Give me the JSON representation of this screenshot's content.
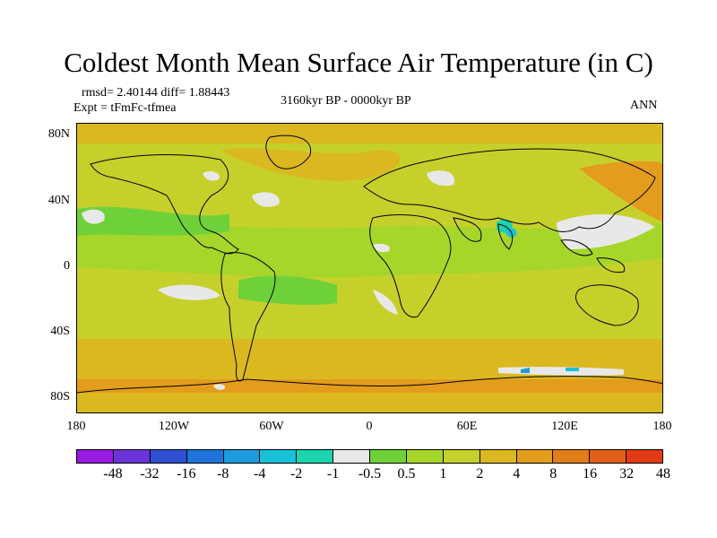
{
  "title": "Coldest Month Mean Surface Air Temperature (in C)",
  "stats": "rmsd= 2.40144 diff= 1.88443",
  "expt": "Expt = tFmFc-tfmea",
  "period": "3160kyr BP - 0000kyr BP",
  "season": "ANN",
  "y_ticks": [
    "80N",
    "40N",
    "0",
    "40S",
    "80S"
  ],
  "x_ticks": [
    "180",
    "120W",
    "60W",
    "0",
    "60E",
    "120E",
    "180"
  ],
  "colorbar": {
    "colors": [
      "#9a1be2",
      "#6a34d8",
      "#2f4fd2",
      "#1f74dc",
      "#1d9be0",
      "#17c2d8",
      "#1ad4b0",
      "#e8e8e8",
      "#6fd13a",
      "#a6d62a",
      "#c6d02a",
      "#dcb820",
      "#e39c1c",
      "#e27e18",
      "#e2601a",
      "#e23a14"
    ],
    "labels": [
      "-48",
      "-32",
      "-16",
      "-8",
      "-4",
      "-2",
      "-1",
      "-0.5",
      "0.5",
      "1",
      "2",
      "4",
      "8",
      "16",
      "32",
      "48"
    ]
  }
}
